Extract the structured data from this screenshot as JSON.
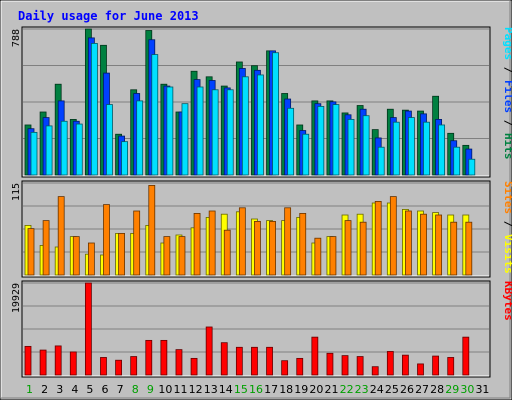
{
  "chart_data": {
    "title": "Daily usage for June 2013",
    "type": "bar",
    "days": [
      "1",
      "2",
      "3",
      "4",
      "5",
      "6",
      "7",
      "8",
      "9",
      "10",
      "11",
      "12",
      "13",
      "14",
      "15",
      "16",
      "17",
      "18",
      "19",
      "20",
      "21",
      "22",
      "23",
      "24",
      "25",
      "26",
      "27",
      "28",
      "29",
      "30",
      "31"
    ],
    "weekend_days": [
      1,
      8,
      9,
      15,
      16,
      22,
      23,
      29,
      30
    ],
    "colors": {
      "title": "#0000ff",
      "background": "#c0c0c0",
      "frame": "#ffffff",
      "hits": "#008040",
      "files": "#0040ff",
      "pages": "#00e0ff",
      "visits": "#ffff00",
      "sites": "#ff8000",
      "kbytes": "#ff0000",
      "weekday_label": "#000000",
      "weekend_label": "#00a000",
      "grid": "#808080"
    },
    "panels": [
      {
        "max_label": "788",
        "ymax": 788,
        "legend": [
          {
            "text": "Pages",
            "color": "#00e0ff"
          },
          {
            "text": " / ",
            "color": "#000000"
          },
          {
            "text": "Files",
            "color": "#0040ff"
          },
          {
            "text": " / ",
            "color": "#000000"
          },
          {
            "text": "Hits",
            "color": "#008040"
          }
        ],
        "series": [
          {
            "name": "Hits",
            "color": "#008040",
            "values": [
              270,
              340,
              490,
              300,
              788,
              700,
              220,
              460,
              780,
              490,
              340,
              560,
              530,
              480,
              610,
              590,
              670,
              440,
              270,
              400,
              400,
              335,
              375,
              245,
              355,
              350,
              345,
              425,
              225,
              160,
              0
            ]
          },
          {
            "name": "Files",
            "color": "#0040ff",
            "values": [
              250,
              310,
              400,
              290,
              740,
              550,
              210,
              440,
              730,
              480,
              340,
              515,
              510,
              470,
              575,
              565,
              670,
              410,
              240,
              385,
              395,
              325,
              355,
              200,
              310,
              345,
              330,
              300,
              185,
              140,
              0
            ]
          },
          {
            "name": "Pages",
            "color": "#00e0ff",
            "values": [
              230,
              265,
              290,
              275,
              710,
              380,
              180,
              400,
              650,
              475,
              385,
              475,
              460,
              460,
              530,
              540,
              660,
              360,
              220,
              370,
              380,
              300,
              320,
              150,
              285,
              310,
              285,
              270,
              150,
              85,
              0
            ]
          }
        ]
      },
      {
        "max_label": "115",
        "ymax": 115,
        "legend": [
          {
            "text": "Sites",
            "color": "#ff8000"
          },
          {
            "text": " / ",
            "color": "#000000"
          },
          {
            "text": "Visits",
            "color": "#ffff00"
          }
        ],
        "series": [
          {
            "name": "Visits",
            "color": "#ffff00",
            "values": [
              62,
              37,
              35,
              48,
              26,
              25,
              52,
              52,
              62,
              40,
              50,
              59,
              72,
              76,
              79,
              70,
              68,
              68,
              72,
              40,
              48,
              75,
              76,
              90,
              90,
              82,
              80,
              78,
              75,
              75,
              0
            ]
          },
          {
            "name": "Sites",
            "color": "#ff8000",
            "values": [
              58,
              68,
              98,
              48,
              40,
              88,
              52,
              80,
              112,
              48,
              48,
              77,
              80,
              56,
              84,
              67,
              67,
              84,
              77,
              46,
              48,
              68,
              66,
              92,
              98,
              80,
              76,
              75,
              66,
              66,
              0
            ]
          }
        ]
      },
      {
        "max_label": "19929",
        "ymax": 19929,
        "legend": [
          {
            "text": "KBytes",
            "color": "#ff0000"
          }
        ],
        "series": [
          {
            "name": "KBytes",
            "color": "#ff0000",
            "values": [
              6200,
              5400,
              6300,
              5000,
              19929,
              3800,
              3200,
              4000,
              7500,
              7500,
              5500,
              3600,
              10400,
              7000,
              6000,
              6000,
              6000,
              3100,
              3600,
              8200,
              4700,
              4200,
              4000,
              1800,
              5100,
              4300,
              2400,
              4100,
              3800,
              8200,
              0
            ]
          }
        ]
      }
    ]
  }
}
